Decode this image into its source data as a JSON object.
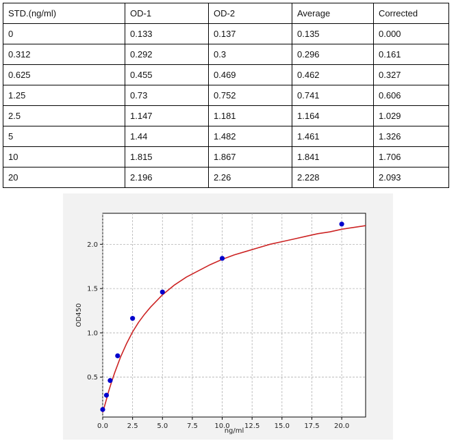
{
  "table": {
    "headers": [
      "STD.(ng/ml)",
      "OD-1",
      "OD-2",
      "Average",
      "Corrected"
    ],
    "rows": [
      [
        "0",
        "0.133",
        "0.137",
        "0.135",
        "0.000"
      ],
      [
        "0.312",
        "0.292",
        "0.3",
        "0.296",
        "0.161"
      ],
      [
        "0.625",
        "0.455",
        "0.469",
        "0.462",
        "0.327"
      ],
      [
        "1.25",
        "0.73",
        "0.752",
        "0.741",
        "0.606"
      ],
      [
        "2.5",
        "1.147",
        "1.181",
        "1.164",
        "1.029"
      ],
      [
        "5",
        "1.44",
        "1.482",
        "1.461",
        "1.326"
      ],
      [
        "10",
        "1.815",
        "1.867",
        "1.841",
        "1.706"
      ],
      [
        "20",
        "2.196",
        "2.26",
        "2.228",
        "2.093"
      ]
    ]
  },
  "chart_data": {
    "type": "scatter",
    "title": "",
    "xlabel": "ng/ml",
    "ylabel": "OD450",
    "xlim": [
      0,
      22
    ],
    "ylim": [
      0.05,
      2.35
    ],
    "xticks": [
      0.0,
      2.5,
      5.0,
      7.5,
      10.0,
      12.5,
      15.0,
      17.5,
      20.0
    ],
    "xtick_labels": [
      "0.0",
      "2.5",
      "5.0",
      "7.5",
      "10.0",
      "12.5",
      "15.0",
      "17.5",
      "20.0"
    ],
    "yticks": [
      0.5,
      1.0,
      1.5,
      2.0
    ],
    "ytick_labels": [
      "0.5",
      "1.0",
      "1.5",
      "2.0"
    ],
    "grid": true,
    "points": {
      "x": [
        0,
        0.312,
        0.625,
        1.25,
        2.5,
        5,
        10,
        20
      ],
      "y": [
        0.135,
        0.296,
        0.462,
        0.741,
        1.164,
        1.461,
        1.841,
        2.228
      ],
      "color": "#0000cc"
    },
    "fit_curve": {
      "color": "#cc2222",
      "x": [
        0,
        0.25,
        0.5,
        0.75,
        1,
        1.5,
        2,
        2.5,
        3,
        3.5,
        4,
        5,
        6,
        7,
        8,
        9,
        10,
        11,
        12,
        13,
        14,
        15,
        16,
        17,
        18,
        19,
        20,
        21,
        22
      ],
      "y": [
        0.1,
        0.22,
        0.34,
        0.45,
        0.55,
        0.73,
        0.88,
        1.01,
        1.12,
        1.21,
        1.29,
        1.43,
        1.54,
        1.63,
        1.7,
        1.77,
        1.83,
        1.88,
        1.92,
        1.96,
        2.0,
        2.03,
        2.06,
        2.09,
        2.12,
        2.14,
        2.17,
        2.19,
        2.21
      ]
    }
  }
}
